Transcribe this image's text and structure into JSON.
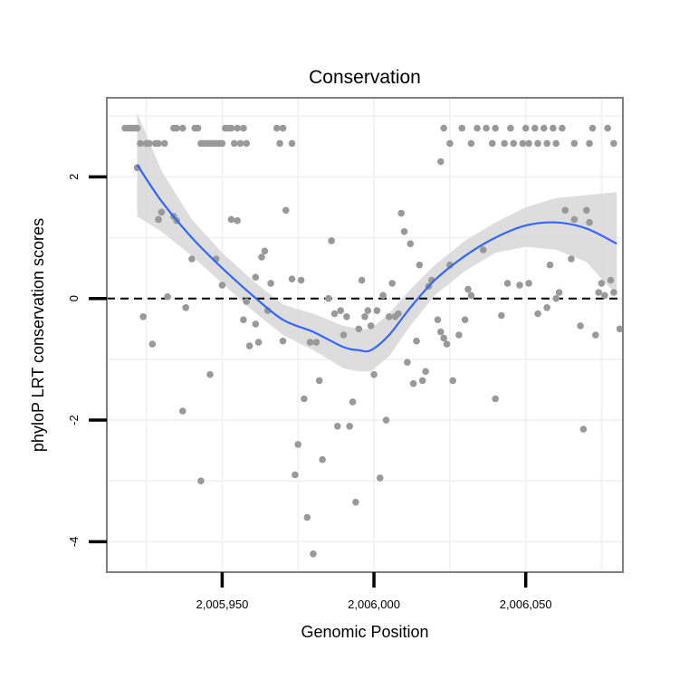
{
  "chart_data": {
    "type": "scatter",
    "title": "Conservation",
    "xlabel": "Genomic Position",
    "ylabel": "phyloP LRT conservation scores",
    "xlim": [
      2005912,
      2006082
    ],
    "ylim": [
      -4.5,
      3.3
    ],
    "x_ticks": [
      2005950,
      2006000,
      2006050
    ],
    "x_tick_labels": [
      "2,005,950",
      "2,006,000",
      "2,006,050"
    ],
    "y_ticks": [
      -4,
      -2,
      0,
      2
    ],
    "y_tick_labels": [
      "-4",
      "-2",
      "0",
      "2"
    ],
    "reference_line": {
      "y": 0,
      "style": "dashed"
    },
    "colors": {
      "points": "#999999",
      "smooth": "#3366FF",
      "ribbon": "#d9d9d9",
      "grid": "#f2f2f2",
      "border": "#7f7f7f"
    },
    "points": [
      [
        2005918,
        2.8
      ],
      [
        2005919,
        2.8
      ],
      [
        2005920,
        2.8
      ],
      [
        2005921,
        2.8
      ],
      [
        2005922,
        2.8
      ],
      [
        2005923,
        2.55
      ],
      [
        2005925,
        2.55
      ],
      [
        2005926,
        2.55
      ],
      [
        2005928,
        2.55
      ],
      [
        2005929,
        2.55
      ],
      [
        2005931,
        2.55
      ],
      [
        2005934,
        2.8
      ],
      [
        2005935,
        2.8
      ],
      [
        2005937,
        2.8
      ],
      [
        2005941,
        2.8
      ],
      [
        2005942,
        2.8
      ],
      [
        2005943,
        2.55
      ],
      [
        2005944,
        2.55
      ],
      [
        2005945,
        2.55
      ],
      [
        2005946,
        2.55
      ],
      [
        2005947,
        2.55
      ],
      [
        2005948,
        2.55
      ],
      [
        2005949,
        2.55
      ],
      [
        2005950,
        2.55
      ],
      [
        2005951,
        2.8
      ],
      [
        2005952,
        2.8
      ],
      [
        2005953,
        2.8
      ],
      [
        2005955,
        2.8
      ],
      [
        2005957,
        2.8
      ],
      [
        2005954,
        2.55
      ],
      [
        2005956,
        2.55
      ],
      [
        2005958,
        2.55
      ],
      [
        2005968,
        2.8
      ],
      [
        2005970,
        2.8
      ],
      [
        2005969,
        2.55
      ],
      [
        2005973,
        2.55
      ],
      [
        2006023,
        2.8
      ],
      [
        2006029,
        2.8
      ],
      [
        2006034,
        2.8
      ],
      [
        2006037,
        2.8
      ],
      [
        2006040,
        2.8
      ],
      [
        2006045,
        2.8
      ],
      [
        2006050,
        2.8
      ],
      [
        2006053,
        2.8
      ],
      [
        2006056,
        2.8
      ],
      [
        2006059,
        2.8
      ],
      [
        2006062,
        2.8
      ],
      [
        2006072,
        2.8
      ],
      [
        2006077,
        2.8
      ],
      [
        2006025,
        2.55
      ],
      [
        2006032,
        2.55
      ],
      [
        2006039,
        2.55
      ],
      [
        2006043,
        2.55
      ],
      [
        2006046,
        2.55
      ],
      [
        2006049,
        2.55
      ],
      [
        2006051,
        2.55
      ],
      [
        2006054,
        2.55
      ],
      [
        2006057,
        2.55
      ],
      [
        2006060,
        2.55
      ],
      [
        2006066,
        2.55
      ],
      [
        2006071,
        2.55
      ],
      [
        2006079,
        2.55
      ],
      [
        2006022,
        2.25
      ],
      [
        2005922,
        2.15
      ],
      [
        2005924,
        -0.3
      ],
      [
        2005927,
        -0.75
      ],
      [
        2005929,
        1.3
      ],
      [
        2005930,
        1.42
      ],
      [
        2005932,
        0.03
      ],
      [
        2005934,
        1.35
      ],
      [
        2005935,
        1.28
      ],
      [
        2005937,
        -1.85
      ],
      [
        2005938,
        -0.15
      ],
      [
        2005940,
        0.65
      ],
      [
        2005943,
        -3.0
      ],
      [
        2005946,
        -1.25
      ],
      [
        2005948,
        0.65
      ],
      [
        2005950,
        0.22
      ],
      [
        2005953,
        1.3
      ],
      [
        2005955,
        1.28
      ],
      [
        2005957,
        -0.35
      ],
      [
        2005958,
        -0.05
      ],
      [
        2005959,
        -0.78
      ],
      [
        2005961,
        0.35
      ],
      [
        2005961,
        -0.42
      ],
      [
        2005962,
        -0.72
      ],
      [
        2005963,
        0.68
      ],
      [
        2005964,
        0.78
      ],
      [
        2005965,
        -0.2
      ],
      [
        2005966,
        0.25
      ],
      [
        2005970,
        -0.7
      ],
      [
        2005971,
        1.45
      ],
      [
        2005973,
        0.32
      ],
      [
        2005974,
        -2.9
      ],
      [
        2005975,
        -2.4
      ],
      [
        2005976,
        0.3
      ],
      [
        2005977,
        -1.65
      ],
      [
        2005978,
        -3.6
      ],
      [
        2005979,
        -0.72
      ],
      [
        2005980,
        -4.2
      ],
      [
        2005981,
        -0.72
      ],
      [
        2005982,
        -1.35
      ],
      [
        2005983,
        -2.65
      ],
      [
        2005985,
        0.0
      ],
      [
        2005986,
        0.95
      ],
      [
        2005987,
        -0.25
      ],
      [
        2005988,
        -2.1
      ],
      [
        2005989,
        -0.2
      ],
      [
        2005990,
        -0.6
      ],
      [
        2005991,
        -0.3
      ],
      [
        2005992,
        -2.1
      ],
      [
        2005993,
        -1.7
      ],
      [
        2005994,
        -3.35
      ],
      [
        2005995,
        -0.5
      ],
      [
        2005996,
        0.3
      ],
      [
        2005997,
        -0.3
      ],
      [
        2005998,
        -0.2
      ],
      [
        2005999,
        -0.45
      ],
      [
        2006000,
        -1.25
      ],
      [
        2006001,
        -0.2
      ],
      [
        2006002,
        -2.95
      ],
      [
        2006003,
        0.05
      ],
      [
        2006004,
        -2.0
      ],
      [
        2006005,
        -0.3
      ],
      [
        2006006,
        0.25
      ],
      [
        2006007,
        -0.3
      ],
      [
        2006008,
        -0.25
      ],
      [
        2006009,
        1.4
      ],
      [
        2006010,
        1.1
      ],
      [
        2006011,
        -1.05
      ],
      [
        2006012,
        0.9
      ],
      [
        2006013,
        -1.4
      ],
      [
        2006014,
        -0.7
      ],
      [
        2006015,
        0.55
      ],
      [
        2006016,
        -1.35
      ],
      [
        2006017,
        -1.2
      ],
      [
        2006018,
        0.2
      ],
      [
        2006019,
        0.3
      ],
      [
        2006021,
        -0.35
      ],
      [
        2006022,
        -0.55
      ],
      [
        2006023,
        -0.65
      ],
      [
        2006024,
        -0.75
      ],
      [
        2006025,
        0.55
      ],
      [
        2006026,
        -1.35
      ],
      [
        2006028,
        -0.6
      ],
      [
        2006030,
        -0.35
      ],
      [
        2006031,
        0.15
      ],
      [
        2006032,
        0.05
      ],
      [
        2006036,
        0.8
      ],
      [
        2006040,
        -1.65
      ],
      [
        2006042,
        -0.28
      ],
      [
        2006044,
        0.25
      ],
      [
        2006048,
        0.22
      ],
      [
        2006051,
        0.25
      ],
      [
        2006054,
        -0.25
      ],
      [
        2006057,
        -0.15
      ],
      [
        2006058,
        0.55
      ],
      [
        2006060,
        0.0
      ],
      [
        2006061,
        0.1
      ],
      [
        2006063,
        1.45
      ],
      [
        2006065,
        0.65
      ],
      [
        2006066,
        1.3
      ],
      [
        2006068,
        -0.45
      ],
      [
        2006069,
        -2.15
      ],
      [
        2006070,
        1.45
      ],
      [
        2006071,
        1.25
      ],
      [
        2006073,
        -0.6
      ],
      [
        2006074,
        0.1
      ],
      [
        2006075,
        0.25
      ],
      [
        2006076,
        0.05
      ],
      [
        2006078,
        0.3
      ],
      [
        2006079,
        0.1
      ],
      [
        2006081,
        -0.5
      ]
    ],
    "smooth": {
      "x": [
        2005922,
        2005930,
        2005940,
        2005950,
        2005960,
        2005970,
        2005980,
        2005990,
        2005995,
        2005999,
        2006005,
        2006012,
        2006020,
        2006030,
        2006040,
        2006050,
        2006060,
        2006070,
        2006080
      ],
      "y": [
        2.2,
        1.6,
        1.0,
        0.5,
        0.05,
        -0.35,
        -0.55,
        -0.8,
        -0.85,
        -0.85,
        -0.6,
        -0.15,
        0.3,
        0.7,
        1.0,
        1.2,
        1.25,
        1.15,
        0.9
      ],
      "lower": [
        1.35,
        1.1,
        0.7,
        0.25,
        -0.2,
        -0.6,
        -0.85,
        -1.15,
        -1.2,
        -1.2,
        -0.95,
        -0.45,
        0.05,
        0.45,
        0.75,
        0.85,
        0.8,
        0.6,
        0.05
      ],
      "upper": [
        3.05,
        2.1,
        1.3,
        0.75,
        0.3,
        -0.1,
        -0.25,
        -0.45,
        -0.5,
        -0.5,
        -0.25,
        0.15,
        0.55,
        0.95,
        1.25,
        1.5,
        1.65,
        1.7,
        1.75
      ]
    }
  }
}
